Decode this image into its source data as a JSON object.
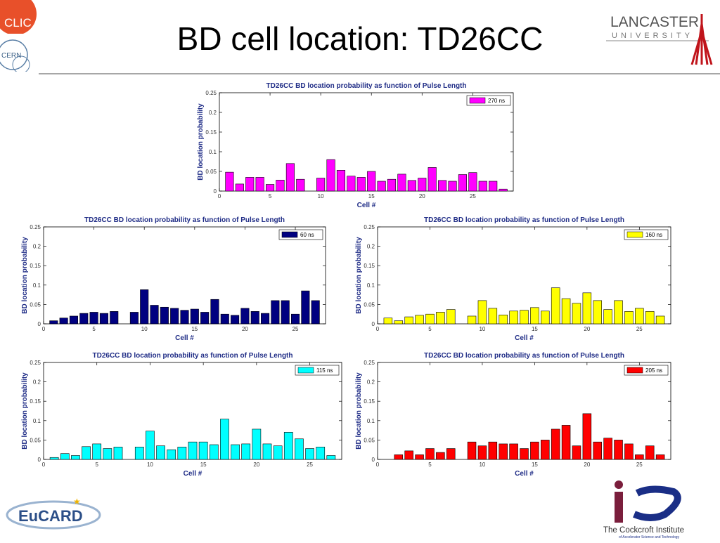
{
  "slide": {
    "title": "BD cell location: TD26CC",
    "logos": {
      "clic": "CLIC",
      "cern": "CERN",
      "lancaster_line1": "LANCASTER",
      "lancaster_line2": "UNIVERSITY",
      "eucard": "EuCARD",
      "cockcroft_line1": "The Cockcroft Institute",
      "cockcroft_line2": "of Accelerator Science and Technology"
    }
  },
  "chart_data": [
    {
      "type": "bar",
      "title": "TD26CC BD location probability as function of Pulse Length",
      "xlabel": "Cell #",
      "ylabel": "BD location probability",
      "xlim": [
        0,
        29
      ],
      "ylim": [
        0,
        0.25
      ],
      "xticks": [
        0,
        5,
        10,
        15,
        20,
        25
      ],
      "yticks": [
        0,
        0.05,
        0.1,
        0.15,
        0.2,
        0.25
      ],
      "ytick_labels": [
        "0",
        "0.05",
        "0.1",
        "0.15",
        "0.2",
        "0.25"
      ],
      "legend_position": "top-right",
      "series": [
        {
          "name": "270 ns",
          "color": "#ff00ff",
          "x": [
            1,
            2,
            3,
            4,
            5,
            6,
            7,
            8,
            10,
            11,
            12,
            13,
            14,
            15,
            16,
            17,
            18,
            19,
            20,
            21,
            22,
            23,
            24,
            25,
            26,
            27,
            28
          ],
          "values": [
            0.048,
            0.018,
            0.035,
            0.035,
            0.017,
            0.028,
            0.07,
            0.03,
            0.033,
            0.08,
            0.053,
            0.038,
            0.035,
            0.05,
            0.025,
            0.03,
            0.043,
            0.027,
            0.033,
            0.06,
            0.027,
            0.025,
            0.042,
            0.047,
            0.025,
            0.025,
            0.005
          ]
        }
      ]
    },
    {
      "type": "bar",
      "title": "TD26CC BD location probability as function of Pulse Length",
      "xlabel": "Cell #",
      "ylabel": "BD location probability",
      "xlim": [
        0,
        28
      ],
      "ylim": [
        0,
        0.25
      ],
      "xticks": [
        0,
        5,
        10,
        15,
        20,
        25
      ],
      "yticks": [
        0,
        0.05,
        0.1,
        0.15,
        0.2,
        0.25
      ],
      "ytick_labels": [
        "0",
        "0.05",
        "0.1",
        "0.15",
        "0.2",
        "0.25"
      ],
      "legend_position": "top-right",
      "series": [
        {
          "name": "60 ns",
          "color": "#000080",
          "x": [
            1,
            2,
            3,
            4,
            5,
            6,
            7,
            9,
            10,
            11,
            12,
            13,
            14,
            15,
            16,
            17,
            18,
            19,
            20,
            21,
            22,
            23,
            24,
            25,
            26,
            27
          ],
          "values": [
            0.008,
            0.015,
            0.02,
            0.027,
            0.03,
            0.027,
            0.032,
            0.03,
            0.088,
            0.048,
            0.043,
            0.04,
            0.035,
            0.038,
            0.03,
            0.063,
            0.025,
            0.022,
            0.04,
            0.032,
            0.027,
            0.06,
            0.06,
            0.025,
            0.085,
            0.06
          ]
        }
      ]
    },
    {
      "type": "bar",
      "title": "TD26CC BD location probability as function of Pulse Length",
      "xlabel": "Cell #",
      "ylabel": "BD location probability",
      "xlim": [
        0,
        28
      ],
      "ylim": [
        0,
        0.25
      ],
      "xticks": [
        0,
        5,
        10,
        15,
        20,
        25
      ],
      "yticks": [
        0,
        0.05,
        0.1,
        0.15,
        0.2,
        0.25
      ],
      "ytick_labels": [
        "0",
        "0.05",
        "0.1",
        "0.15",
        "0.2",
        "0.25"
      ],
      "legend_position": "top-right",
      "series": [
        {
          "name": "160 ns",
          "color": "#ffff00",
          "x": [
            1,
            2,
            3,
            4,
            5,
            6,
            7,
            9,
            10,
            11,
            12,
            13,
            14,
            15,
            16,
            17,
            18,
            19,
            20,
            21,
            22,
            23,
            24,
            25,
            26,
            27
          ],
          "values": [
            0.015,
            0.008,
            0.018,
            0.022,
            0.025,
            0.03,
            0.037,
            0.02,
            0.06,
            0.04,
            0.023,
            0.033,
            0.035,
            0.042,
            0.033,
            0.093,
            0.065,
            0.053,
            0.08,
            0.06,
            0.037,
            0.06,
            0.032,
            0.04,
            0.032,
            0.02
          ]
        }
      ]
    },
    {
      "type": "bar",
      "title": "TD26CC BD location probability as function of Pulse Length",
      "xlabel": "Cell #",
      "ylabel": "BD location probability",
      "xlim": [
        0,
        28
      ],
      "ylim": [
        0,
        0.25
      ],
      "xticks": [
        0,
        5,
        10,
        15,
        20,
        25
      ],
      "yticks": [
        0,
        0.05,
        0.1,
        0.15,
        0.2,
        0.25
      ],
      "ytick_labels": [
        "0",
        "0.05",
        "0.1",
        "0.15",
        "0.2",
        "0.25"
      ],
      "legend_position": "top-right",
      "series": [
        {
          "name": "115 ns",
          "color": "#00ffff",
          "x": [
            1,
            2,
            3,
            4,
            5,
            6,
            7,
            9,
            10,
            11,
            12,
            13,
            14,
            15,
            16,
            17,
            18,
            19,
            20,
            21,
            22,
            23,
            24,
            25,
            26,
            27
          ],
          "values": [
            0.005,
            0.015,
            0.01,
            0.033,
            0.04,
            0.028,
            0.032,
            0.032,
            0.073,
            0.035,
            0.025,
            0.032,
            0.045,
            0.045,
            0.038,
            0.104,
            0.038,
            0.04,
            0.078,
            0.04,
            0.035,
            0.07,
            0.053,
            0.028,
            0.032,
            0.01
          ]
        }
      ]
    },
    {
      "type": "bar",
      "title": "TD26CC BD location probability as function of Pulse Length",
      "xlabel": "Cell #",
      "ylabel": "BD location probability",
      "xlim": [
        0,
        28
      ],
      "ylim": [
        0,
        0.25
      ],
      "xticks": [
        0,
        5,
        10,
        15,
        20,
        25
      ],
      "yticks": [
        0,
        0.05,
        0.1,
        0.15,
        0.2,
        0.25
      ],
      "ytick_labels": [
        "0",
        "0.05",
        "0.1",
        "0.15",
        "0.2",
        "0.25"
      ],
      "legend_position": "top-right",
      "series": [
        {
          "name": "205 ns",
          "color": "#ff0000",
          "x": [
            2,
            3,
            4,
            5,
            6,
            7,
            9,
            10,
            11,
            12,
            13,
            14,
            15,
            16,
            17,
            18,
            19,
            20,
            21,
            22,
            23,
            24,
            25,
            26,
            27
          ],
          "values": [
            0.012,
            0.022,
            0.012,
            0.028,
            0.018,
            0.028,
            0.045,
            0.035,
            0.045,
            0.04,
            0.04,
            0.028,
            0.045,
            0.05,
            0.078,
            0.088,
            0.035,
            0.118,
            0.045,
            0.055,
            0.05,
            0.04,
            0.012,
            0.035,
            0.012
          ]
        }
      ]
    }
  ]
}
